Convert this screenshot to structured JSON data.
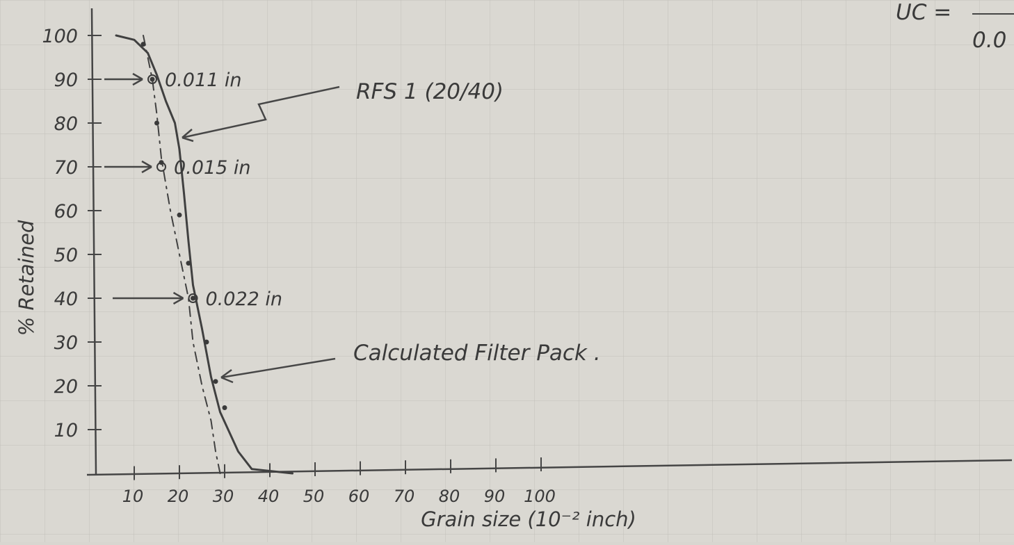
{
  "chart_data": {
    "type": "line",
    "xlabel": "Grain size (10⁻² inch)",
    "ylabel": "% Retained",
    "xlim": [
      0,
      120
    ],
    "ylim": [
      0,
      100
    ],
    "x_ticks": [
      "10",
      "20",
      "30",
      "40",
      "50",
      "60",
      "70",
      "80",
      "90",
      "100"
    ],
    "y_ticks": [
      "10",
      "20",
      "30",
      "40",
      "50",
      "60",
      "70",
      "80",
      "90",
      "100"
    ],
    "grid": true,
    "series": [
      {
        "name": "RFS 1 (20/40)",
        "style": "solid",
        "x": [
          6,
          10,
          13,
          15,
          17,
          19,
          20,
          21,
          22,
          23,
          25,
          27,
          29,
          33,
          36,
          45
        ],
        "y": [
          100,
          99,
          96,
          91,
          85,
          80,
          74,
          64,
          53,
          43,
          33,
          22,
          14,
          5,
          1,
          0
        ]
      },
      {
        "name": "Calculated Filter Pack",
        "style": "dashed",
        "x": [
          12,
          13,
          14,
          15,
          16,
          18,
          20,
          22,
          23,
          25,
          27,
          28,
          29
        ],
        "y": [
          100,
          95,
          90,
          82,
          72,
          60,
          50,
          40,
          30,
          20,
          12,
          5,
          0
        ]
      }
    ],
    "points": [
      {
        "x": 12,
        "y": 98
      },
      {
        "x": 14,
        "y": 90
      },
      {
        "x": 15,
        "y": 80
      },
      {
        "x": 16,
        "y": 71
      },
      {
        "x": 20,
        "y": 59
      },
      {
        "x": 22,
        "y": 48
      },
      {
        "x": 23,
        "y": 40
      },
      {
        "x": 26,
        "y": 30
      },
      {
        "x": 28,
        "y": 21
      },
      {
        "x": 30,
        "y": 15
      }
    ],
    "markers": [
      {
        "x": 14,
        "y": 90,
        "label": "0.011 in"
      },
      {
        "x": 16,
        "y": 70,
        "label": "0.015 in"
      },
      {
        "x": 23,
        "y": 40,
        "label": "0.022 in"
      }
    ],
    "annotations": [
      "RFS 1 (20/40)",
      "Calculated Filter Pack ."
    ],
    "corner_text": [
      "UC =",
      "0.0"
    ]
  }
}
